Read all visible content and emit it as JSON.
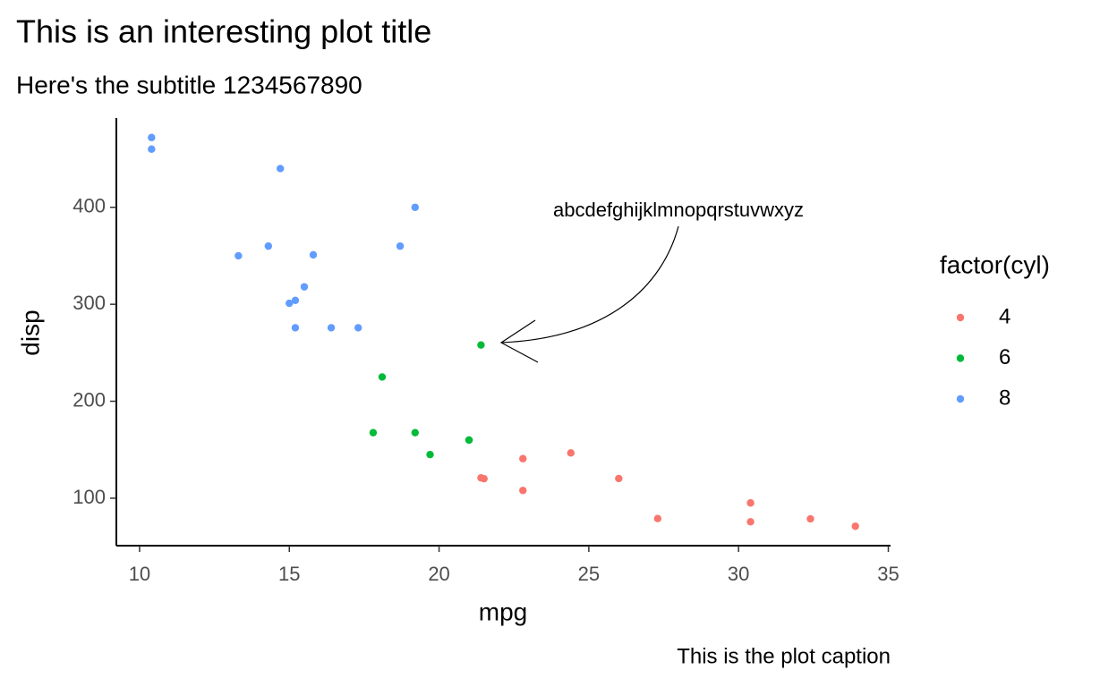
{
  "chart_data": {
    "type": "scatter",
    "title": "This is an interesting plot title",
    "subtitle": "Here's the subtitle 1234567890",
    "caption": "This is the plot caption",
    "x_label": "mpg",
    "y_label": "disp",
    "legend_title": "factor(cyl)",
    "legend_position": "right",
    "annotation": "abcdefghijklmnopqrstuvwxyz",
    "xlim": [
      9.225,
      35.075
    ],
    "ylim": [
      51.055,
      492.045
    ],
    "xticks": [
      10,
      15,
      20,
      25,
      30,
      35
    ],
    "yticks": [
      100,
      200,
      300,
      400
    ],
    "grid": false,
    "series": [
      {
        "name": "4",
        "color": "#F8766D",
        "x": [
          22.8,
          24.4,
          22.8,
          32.4,
          30.4,
          33.9,
          21.5,
          27.3,
          26.0,
          30.4,
          21.4
        ],
        "y": [
          108,
          146.7,
          140.8,
          78.7,
          75.7,
          71.1,
          120.1,
          79,
          120.3,
          95.1,
          121
        ]
      },
      {
        "name": "6",
        "color": "#00BA38",
        "x": [
          21.0,
          21.0,
          21.4,
          18.1,
          19.2,
          17.8,
          19.7
        ],
        "y": [
          160,
          160,
          258,
          225,
          167.6,
          167.6,
          145
        ]
      },
      {
        "name": "8",
        "color": "#619CFF",
        "x": [
          18.7,
          14.3,
          16.4,
          17.3,
          15.2,
          10.4,
          10.4,
          14.7,
          15.5,
          15.2,
          13.3,
          19.2,
          15.8,
          15.0
        ],
        "y": [
          360,
          360,
          275.8,
          275.8,
          275.8,
          472,
          460,
          440,
          318,
          304,
          350,
          400,
          351,
          301
        ]
      }
    ]
  }
}
